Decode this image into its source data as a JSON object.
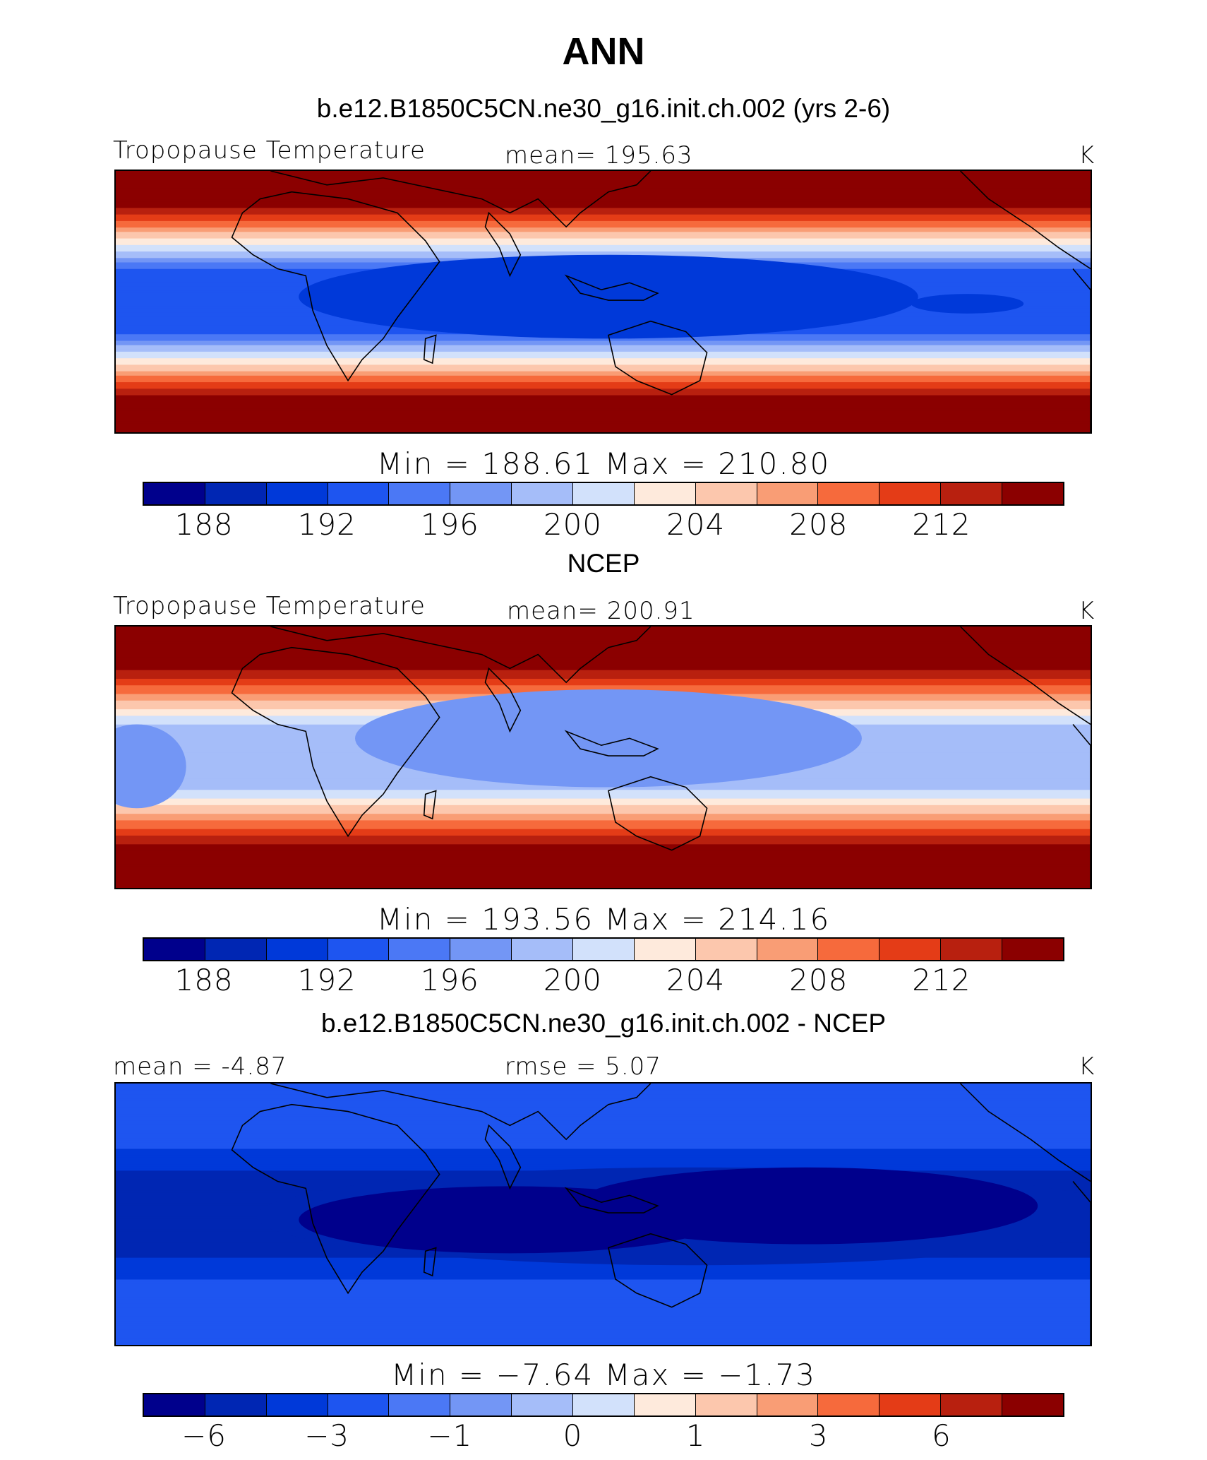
{
  "title": "ANN",
  "colors": [
    "#00008c",
    "#0026b3",
    "#0039d9",
    "#1e55f0",
    "#4b78f5",
    "#7396f5",
    "#a5bdf9",
    "#d2e1fb",
    "#feeadc",
    "#fcc7ad",
    "#f99d75",
    "#f66a3c",
    "#e43c17",
    "#b8200f",
    "#8b0000"
  ],
  "panels": [
    {
      "subtitle": "b.e12.B1850C5CN.ne30_g16.init.ch.002 (yrs 2-6)",
      "left_label": "Tropopause  Temperature",
      "center_label": "mean=  195.63",
      "units": "K",
      "minmax": "Min  =  188.61  Max  =  210.80",
      "ticks": [
        "188",
        "192",
        "196",
        "200",
        "204",
        "208",
        "212"
      ],
      "field": "model"
    },
    {
      "subtitle": "NCEP",
      "left_label": "Tropopause  Temperature",
      "center_label": "mean=  200.91",
      "units": "K",
      "minmax": "Min  =  193.56  Max  =  214.16",
      "ticks": [
        "188",
        "192",
        "196",
        "200",
        "204",
        "208",
        "212"
      ],
      "field": "obs"
    },
    {
      "subtitle": "b.e12.B1850C5CN.ne30_g16.init.ch.002 - NCEP",
      "left_label": "mean  =   -4.87",
      "center_label": "rmse  =     5.07",
      "units": "K",
      "minmax": "Min  =   −7.64  Max  =   −1.73",
      "ticks": [
        "−6",
        "−3",
        "−1",
        "0",
        "1",
        "3",
        "6"
      ],
      "field": "diff"
    }
  ]
}
